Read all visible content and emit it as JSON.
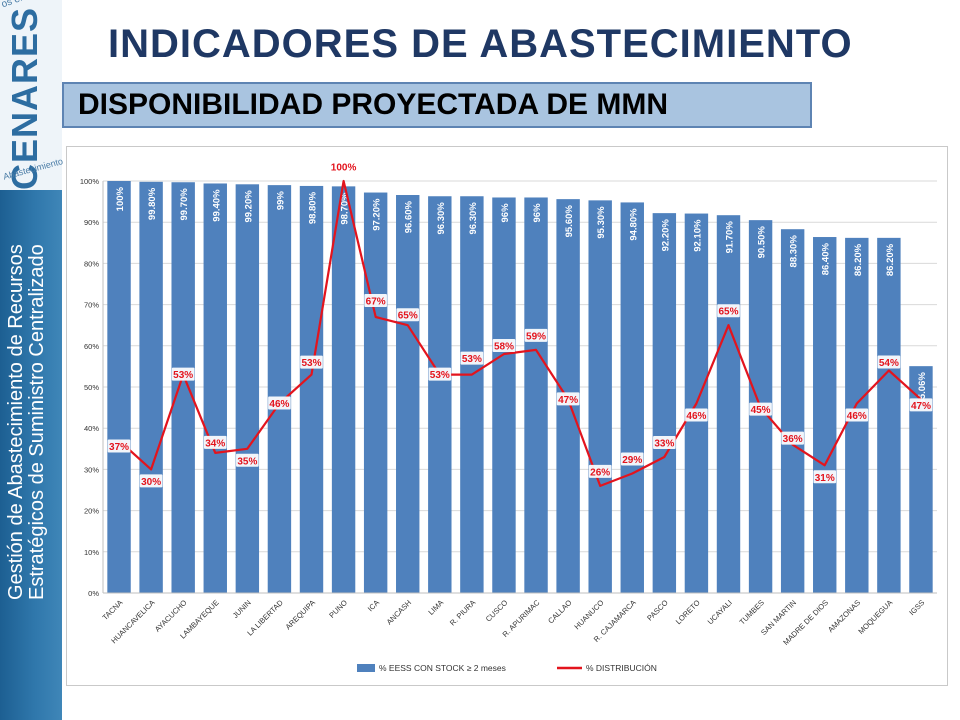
{
  "sidebar": {
    "logo_text": "CENARES",
    "logo_small_top": "os en Salud",
    "logo_small_bottom": "Abastecimiento",
    "line1": "Gestión de Abastecimiento de Recursos",
    "line2": "Estratégicos de Suministro Centralizado"
  },
  "header": {
    "title": "INDICADORES DE ABASTECIMIENTO",
    "subtitle": "DISPONIBILIDAD PROYECTADA DE MMN"
  },
  "colors": {
    "bar": "#4f81bd",
    "line": "#e3141d",
    "title": "#1f3864"
  },
  "chart_data": {
    "type": "bar",
    "categories": [
      "TACNA",
      "HUANCAVELICA",
      "AYACUCHO",
      "LAMBAYEQUE",
      "JUNIN",
      "LA LIBERTAD",
      "AREQUIPA",
      "PUNO",
      "ICA",
      "ANCASH",
      "LIMA",
      "R. PIURA",
      "CUSCO",
      "R. APURIMAC",
      "CALLAO",
      "HUANUCO",
      "R. CAJAMARCA",
      "PASCO",
      "LORETO",
      "UCAYALI",
      "TUMBES",
      "SAN MARTIN",
      "MADRE DE DIOS",
      "AMAZONAS",
      "MOQUEGUA",
      "IGSS"
    ],
    "yticks": [
      "0%",
      "10%",
      "20%",
      "30%",
      "40%",
      "50%",
      "60%",
      "70%",
      "80%",
      "90%",
      "100%"
    ],
    "ylim": [
      0,
      100
    ],
    "grid": true,
    "legend_position": "bottom",
    "series": [
      {
        "name": "% EESS CON STOCK ≥ 2 meses",
        "kind": "bar",
        "values": [
          100,
          99.8,
          99.7,
          99.4,
          99.2,
          99,
          98.8,
          98.7,
          97.2,
          96.6,
          96.3,
          96.3,
          96,
          96,
          95.6,
          95.3,
          94.8,
          92.2,
          92.1,
          91.7,
          90.5,
          88.3,
          86.4,
          86.2,
          86.2,
          55.06
        ],
        "labels": [
          "100%",
          "99.80%",
          "99.70%",
          "99.40%",
          "99.20%",
          "99%",
          "98.80%",
          "98.70%",
          "97.20%",
          "96.60%",
          "96.30%",
          "96.30%",
          "96%",
          "96%",
          "95.60%",
          "95.30%",
          "94.80%",
          "92.20%",
          "92.10%",
          "91.70%",
          "90.50%",
          "88.30%",
          "86.40%",
          "86.20%",
          "86.20%",
          "55.06%"
        ]
      },
      {
        "name": "% DISTRIBUCIÓN",
        "kind": "line",
        "values": [
          37,
          30,
          53,
          34,
          35,
          46,
          53,
          100,
          67,
          65,
          53,
          53,
          58,
          59,
          47,
          26,
          29,
          33,
          46,
          65,
          45,
          36,
          31,
          46,
          54,
          47
        ],
        "labels": [
          "37%",
          "30%",
          "53%",
          "34%",
          "35%",
          "46%",
          "53%",
          "100%",
          "67%",
          "65%",
          "53%",
          "53%",
          "58%",
          "59%",
          "47%",
          "26%",
          "29%",
          "33%",
          "46%",
          "65%",
          "45%",
          "36%",
          "31%",
          "46%",
          "54%",
          "47%"
        ]
      }
    ]
  }
}
